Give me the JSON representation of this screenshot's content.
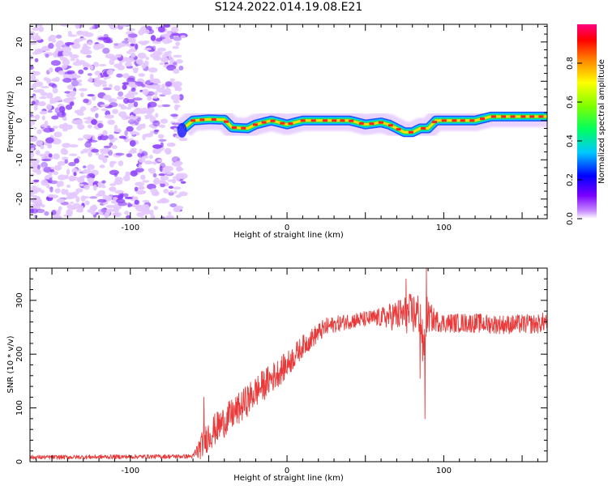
{
  "title": "S124.2022.014.19.08.E21",
  "colors": {
    "snr_line": "#e83a3a",
    "noise_blob": "#8a3cff",
    "noise_light": "#e3c8ff",
    "ridge_core": "#ff2020",
    "ridge_mid": "#ffe000",
    "ridge_green": "#20e060",
    "ridge_edge": "#2050ff"
  },
  "chart_data": [
    {
      "type": "heatmap",
      "name": "spectrogram",
      "xlabel": "Height of straight line (km)",
      "ylabel": "Frequency (Hz)",
      "xlim": [
        -164,
        166
      ],
      "ylim": [
        -25,
        24.5
      ],
      "x_ticks": [
        -100,
        0,
        100
      ],
      "y_ticks": [
        -20,
        -10,
        0,
        10,
        20
      ],
      "noise_region_x": [
        -164,
        -66
      ],
      "signal_ridge": {
        "x": [
          -66,
          -60,
          -50,
          -40,
          -35,
          -25,
          -20,
          -10,
          0,
          10,
          20,
          30,
          40,
          50,
          60,
          65,
          70,
          75,
          80,
          85,
          90,
          95,
          100,
          110,
          120,
          130,
          140,
          150,
          160,
          166
        ],
        "y": [
          -2,
          0,
          0.3,
          0.2,
          -1.8,
          -2,
          -1,
          0,
          -1,
          0,
          0,
          0,
          0,
          -1,
          -0.5,
          -1,
          -2,
          -3,
          -3,
          -2,
          -2,
          0,
          0,
          0,
          0,
          1,
          1,
          1,
          1,
          1
        ]
      },
      "colorbar": {
        "label": "Normalized spectral amplitude",
        "range": [
          0,
          1
        ],
        "ticks": [
          0.0,
          0.2,
          0.4,
          0.6,
          0.8
        ],
        "tick_labels": [
          "0.0",
          "0.2",
          "0.4",
          "0.6",
          "0.8"
        ]
      }
    },
    {
      "type": "line",
      "name": "snr",
      "xlabel": "Height of straight line (km)",
      "ylabel": "SNR (10 * v/v)",
      "xlim": [
        -164,
        166
      ],
      "ylim": [
        0,
        360
      ],
      "x_ticks": [
        -100,
        0,
        100
      ],
      "y_ticks": [
        0,
        100,
        200,
        300
      ],
      "series": [
        {
          "envelope_x": [
            -164,
            -60,
            -57,
            -50,
            -40,
            -30,
            -20,
            -10,
            0,
            10,
            20,
            25,
            30,
            40,
            50,
            60,
            70,
            80,
            85,
            87,
            89,
            90,
            95,
            100,
            110,
            120,
            130,
            140,
            150,
            160,
            166
          ],
          "envelope_y": [
            8,
            10,
            20,
            50,
            75,
            100,
            130,
            155,
            180,
            215,
            240,
            250,
            255,
            262,
            265,
            268,
            272,
            275,
            275,
            200,
            275,
            270,
            262,
            258,
            258,
            258,
            256,
            255,
            256,
            256,
            262
          ],
          "noise_amplitude": [
            4,
            4,
            20,
            30,
            30,
            30,
            30,
            28,
            25,
            20,
            18,
            18,
            15,
            15,
            15,
            18,
            30,
            40,
            40,
            40,
            40,
            30,
            20,
            18,
            18,
            18,
            18,
            18,
            18,
            18,
            18
          ],
          "spikes": [
            [
              -53,
              120
            ],
            [
              76,
              340
            ],
            [
              85,
              155
            ],
            [
              89,
              360
            ],
            [
              88,
              80
            ]
          ]
        }
      ]
    }
  ]
}
